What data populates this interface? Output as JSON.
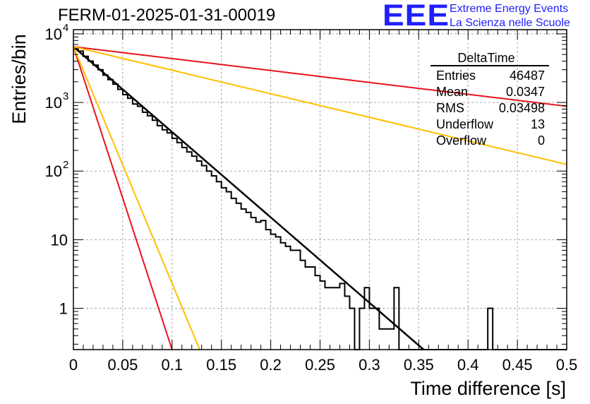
{
  "header": {
    "title": "FERM-01-2025-01-31-00019",
    "logo": "EEE",
    "brand_line1": "Extreme Energy Events",
    "brand_line2": "La Scienza nelle Scuole"
  },
  "stats_box": {
    "title": "DeltaTime",
    "rows": [
      {
        "label": "Entries",
        "value": "46487"
      },
      {
        "label": "Mean",
        "value": "0.0347"
      },
      {
        "label": "RMS",
        "value": "0.03498"
      },
      {
        "label": "Underflow",
        "value": "13"
      },
      {
        "label": "Overflow",
        "value": "0"
      }
    ]
  },
  "chart_data": {
    "type": "line",
    "title": "FERM-01-2025-01-31-00019",
    "xlabel": "Time difference [s]",
    "ylabel": "Entries/bin",
    "xlim": [
      0,
      0.5
    ],
    "ylim": [
      0.25,
      11500
    ],
    "y_scale": "log",
    "grid": true,
    "x_ticks": [
      "0",
      "0.05",
      "0.1",
      "0.15",
      "0.2",
      "0.25",
      "0.3",
      "0.35",
      "0.4",
      "0.45",
      "0.5"
    ],
    "y_ticks": [
      {
        "value": 1,
        "base": "1",
        "exp": ""
      },
      {
        "value": 10,
        "base": "10",
        "exp": ""
      },
      {
        "value": 100,
        "base": "10",
        "exp": "2"
      },
      {
        "value": 1000,
        "base": "10",
        "exp": "3"
      },
      {
        "value": 10000,
        "base": "10",
        "exp": "4"
      }
    ],
    "histogram": {
      "bin_width": 0.005,
      "color": "#000000",
      "counts": [
        6200,
        5600,
        4700,
        4000,
        3500,
        3000,
        2500,
        2150,
        1850,
        1550,
        1300,
        1150,
        950,
        880,
        720,
        640,
        550,
        460,
        400,
        360,
        300,
        260,
        220,
        190,
        165,
        140,
        120,
        100,
        85,
        70,
        57,
        50,
        40,
        34,
        28,
        25,
        21,
        18,
        19,
        14,
        12,
        11,
        9,
        8,
        7,
        7,
        5,
        4,
        4,
        3,
        2.5,
        2,
        2,
        2,
        2.3,
        1.5,
        1,
        0,
        1,
        2,
        1,
        1,
        0.5,
        0.5,
        0.5,
        2,
        0,
        0,
        0,
        0,
        0,
        0,
        0,
        0,
        0,
        0,
        0,
        0,
        0,
        0,
        0,
        0,
        0,
        0,
        1,
        0,
        0,
        0,
        0,
        0,
        0,
        0,
        0,
        0,
        0,
        0,
        0,
        0,
        0,
        0
      ]
    },
    "lines": [
      {
        "color": "#000000",
        "x": [
          0,
          0.355
        ],
        "y": [
          6500,
          0.25
        ],
        "width": 2.5
      },
      {
        "color": "#e8121b",
        "x": [
          0,
          0.5
        ],
        "y": [
          6500,
          880
        ],
        "width": 2
      },
      {
        "color": "#ffbf00",
        "x": [
          0,
          0.5
        ],
        "y": [
          6500,
          125
        ],
        "width": 2
      },
      {
        "color": "#e8121b",
        "x": [
          0,
          0.1
        ],
        "y": [
          6500,
          0.25
        ],
        "width": 2
      },
      {
        "color": "#ffbf00",
        "x": [
          0,
          0.128
        ],
        "y": [
          6500,
          0.25
        ],
        "width": 2
      }
    ]
  }
}
